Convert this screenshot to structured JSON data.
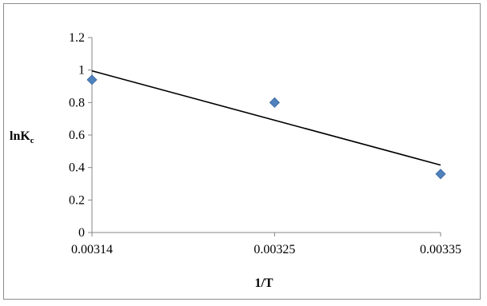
{
  "chart_data": {
    "type": "scatter",
    "title": "",
    "xlabel": "1/T",
    "ylabel": {
      "main": "lnK",
      "sub": "c"
    },
    "x_ticks": [
      "0.00314",
      "0.00325",
      "0.00335"
    ],
    "y_ticks": [
      "0",
      "0.2",
      "0.4",
      "0.6",
      "0.8",
      "1",
      "1.2"
    ],
    "ylim": [
      0,
      1.2
    ],
    "xlim": [
      0.00314,
      0.00335
    ],
    "grid": false,
    "legend": "none",
    "marker_color": "#4f81bd",
    "series": [
      {
        "marker": "diamond",
        "points": [
          {
            "x": 0.00314,
            "y": 0.94
          },
          {
            "x": 0.00325,
            "y": 0.8
          },
          {
            "x": 0.00335,
            "y": 0.36
          }
        ]
      }
    ],
    "trendline": {
      "type": "linear",
      "x": [
        0.00314,
        0.00335
      ],
      "y": [
        0.995,
        0.415
      ],
      "color": "#000000"
    }
  }
}
